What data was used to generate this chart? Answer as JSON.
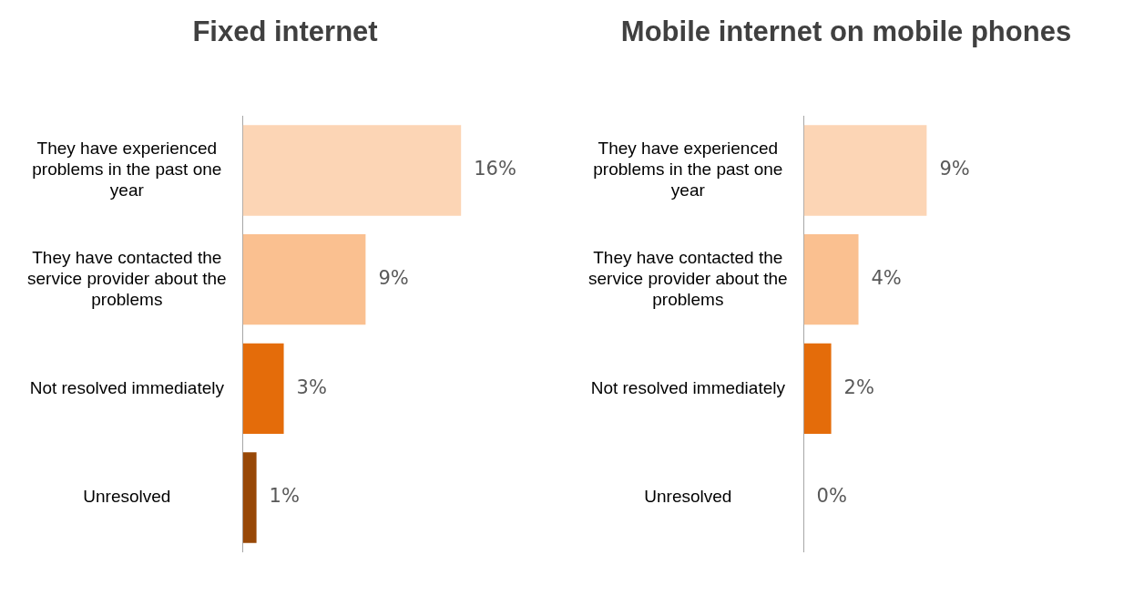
{
  "chart_data": [
    {
      "type": "bar",
      "orientation": "horizontal",
      "title": "Fixed internet",
      "categories": [
        "They have experienced problems in the past one year",
        "They have contacted the service provider about the problems",
        "Not resolved immediately",
        "Unresolved"
      ],
      "values": [
        16,
        9,
        3,
        1
      ],
      "colors": [
        "#fcd5b5",
        "#fac090",
        "#e46c0a",
        "#984807"
      ],
      "value_labels": [
        "16%",
        "9%",
        "3%",
        "1%"
      ]
    },
    {
      "type": "bar",
      "orientation": "horizontal",
      "title": "Mobile internet on mobile phones",
      "categories": [
        "They have experienced problems in the past one year",
        "They have contacted the service provider about the problems",
        "Not resolved immediately",
        "Unresolved"
      ],
      "values": [
        9,
        4,
        2,
        0
      ],
      "colors": [
        "#fcd5b5",
        "#fac090",
        "#e46c0a",
        "#984807"
      ],
      "value_labels": [
        "9%",
        "4%",
        "2%",
        "0%"
      ]
    }
  ]
}
